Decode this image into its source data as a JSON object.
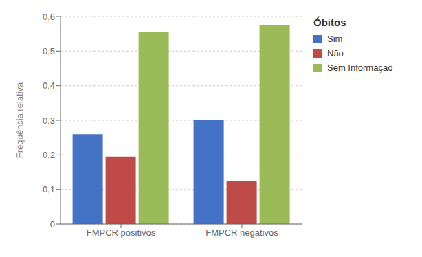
{
  "chart_data": {
    "type": "bar",
    "categories": [
      "FMPCR positivos",
      "FMPCR negativos"
    ],
    "series": [
      {
        "name": "Sim",
        "color": "#4472C4",
        "values": [
          0.26,
          0.3
        ]
      },
      {
        "name": "Não",
        "color": "#BE4B48",
        "values": [
          0.195,
          0.125
        ]
      },
      {
        "name": "Sem Informação",
        "color": "#9BBB59",
        "values": [
          0.555,
          0.575
        ]
      }
    ],
    "ylabel": "Frequência relativa",
    "legend_title": "Óbitos",
    "legend": "right",
    "ylim": [
      0,
      0.6
    ],
    "yticks": [
      0,
      {
        "value": 0.1,
        "label": "0,1"
      },
      {
        "value": 0.2,
        "label": "0,2"
      },
      {
        "value": 0.3,
        "label": "0,3"
      },
      {
        "value": 0.4,
        "label": "0,4"
      },
      {
        "value": 0.5,
        "label": "0,5"
      },
      {
        "value": 0.6,
        "label": "0,6"
      }
    ],
    "grid": true
  }
}
